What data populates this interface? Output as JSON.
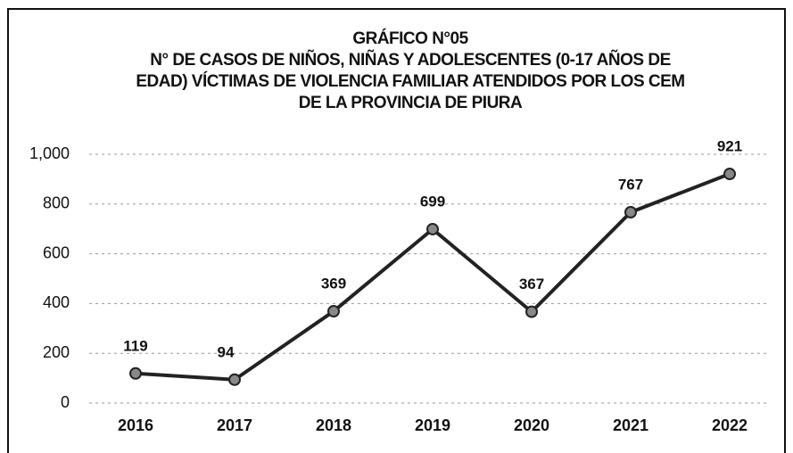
{
  "chart_data": {
    "type": "line",
    "title": [
      "GRÁFICO N°05",
      "N° DE CASOS DE NIÑOS, NIÑAS Y ADOLESCENTES (0-17 AÑOS DE",
      "EDAD) VÍCTIMAS DE VIOLENCIA FAMILIAR ATENDIDOS POR LOS CEM",
      "DE LA PROVINCIA DE PIURA"
    ],
    "categories": [
      "2016",
      "2017",
      "2018",
      "2019",
      "2020",
      "2021",
      "2022"
    ],
    "values": [
      119,
      94,
      369,
      699,
      367,
      767,
      921
    ],
    "color": "#222222",
    "ylim": [
      0,
      1000
    ],
    "yticks": [
      0,
      200,
      400,
      600,
      800,
      {
        "value": 1000,
        "label": "1,000"
      }
    ],
    "grid": true
  }
}
